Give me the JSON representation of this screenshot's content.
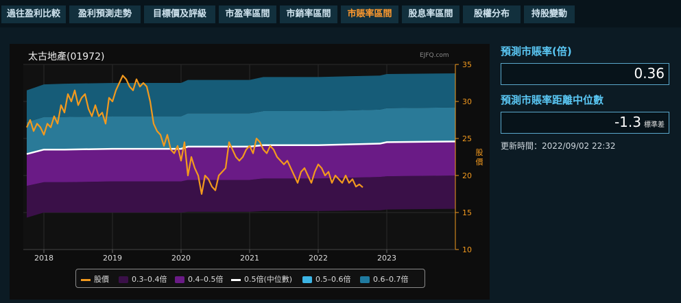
{
  "tabs": [
    {
      "label": "過往盈利比較",
      "active": false
    },
    {
      "label": "盈利預測走勢",
      "active": false
    },
    {
      "label": "目標價及評級",
      "active": false
    },
    {
      "label": "市盈率區間",
      "active": false
    },
    {
      "label": "市銷率區間",
      "active": false
    },
    {
      "label": "市賬率區間",
      "active": true
    },
    {
      "label": "股息率區間",
      "active": false
    },
    {
      "label": "股權分布",
      "active": false
    },
    {
      "label": "持股變動",
      "active": false
    }
  ],
  "side": {
    "pb_label": "預測市賬率(倍)",
    "pb_value": "0.36",
    "dist_label": "預測市賬率距離中位數",
    "dist_value": "-1.3",
    "dist_unit": "標準差",
    "updated": "更新時間：2022/09/02 22:32"
  },
  "chart_data": {
    "type": "area",
    "title": "太古地產(01972)",
    "watermark": "EJFQ.com",
    "ylabel": "股價",
    "ylim": [
      10,
      35
    ],
    "y_ticks": [
      10,
      15,
      20,
      25,
      30,
      35
    ],
    "xlim": [
      2017.7,
      2024.0
    ],
    "x_ticks": [
      "2018",
      "2019",
      "2020",
      "2021",
      "2022",
      "2023"
    ],
    "bands_x": [
      2017.75,
      2018.0,
      2018.3,
      2019.0,
      2019.5,
      2020.0,
      2020.1,
      2021.0,
      2021.2,
      2022.0,
      2022.9,
      2023.0,
      2024.0
    ],
    "bands": [
      {
        "name": "0.3–0.4倍",
        "color": "#3a1048",
        "lower": [
          14.3,
          15.0,
          15.0,
          15.0,
          15.0,
          15.0,
          15.1,
          15.1,
          15.2,
          15.2,
          15.3,
          15.4,
          15.5
        ],
        "upper": [
          18.6,
          19.1,
          19.1,
          19.2,
          19.2,
          19.2,
          19.4,
          19.4,
          19.6,
          19.6,
          19.8,
          19.9,
          20.0
        ]
      },
      {
        "name": "0.4–0.5倍",
        "color": "#6a1b86",
        "lower": [
          18.6,
          19.1,
          19.1,
          19.2,
          19.2,
          19.2,
          19.4,
          19.4,
          19.6,
          19.6,
          19.8,
          19.9,
          20.0
        ],
        "upper": [
          22.9,
          23.5,
          23.5,
          23.6,
          23.6,
          23.6,
          23.9,
          23.9,
          24.1,
          24.1,
          24.3,
          24.5,
          24.6
        ]
      },
      {
        "name": "0.5–0.6倍",
        "color": "#2a7a98",
        "lower": [
          22.9,
          23.5,
          23.5,
          23.6,
          23.6,
          23.6,
          23.9,
          23.9,
          24.1,
          24.1,
          24.3,
          24.5,
          24.6
        ],
        "upper": [
          27.2,
          27.9,
          27.9,
          28.0,
          28.0,
          28.0,
          28.4,
          28.4,
          28.7,
          28.7,
          28.9,
          29.1,
          29.2
        ]
      },
      {
        "name": "0.6–0.7倍",
        "color": "#165c78",
        "lower": [
          27.2,
          27.9,
          27.9,
          28.0,
          28.0,
          28.0,
          28.4,
          28.4,
          28.7,
          28.7,
          28.9,
          29.1,
          29.2
        ],
        "upper": [
          31.5,
          32.3,
          32.4,
          32.5,
          32.5,
          32.5,
          32.9,
          32.9,
          33.3,
          33.3,
          33.5,
          33.7,
          33.8
        ]
      }
    ],
    "median": {
      "name": "0.5倍(中位數)",
      "color": "#ffffff"
    },
    "price": {
      "name": "股價",
      "color": "#f39a1e",
      "x": [
        2017.75,
        2017.8,
        2017.85,
        2017.9,
        2017.95,
        2018.0,
        2018.05,
        2018.1,
        2018.15,
        2018.2,
        2018.25,
        2018.3,
        2018.35,
        2018.4,
        2018.45,
        2018.5,
        2018.55,
        2018.6,
        2018.65,
        2018.7,
        2018.75,
        2018.8,
        2018.85,
        2018.9,
        2018.95,
        2019.0,
        2019.05,
        2019.1,
        2019.15,
        2019.2,
        2019.25,
        2019.3,
        2019.35,
        2019.4,
        2019.45,
        2019.5,
        2019.55,
        2019.6,
        2019.65,
        2019.7,
        2019.75,
        2019.8,
        2019.85,
        2019.9,
        2019.95,
        2020.0,
        2020.05,
        2020.1,
        2020.15,
        2020.2,
        2020.25,
        2020.3,
        2020.35,
        2020.4,
        2020.45,
        2020.5,
        2020.55,
        2020.6,
        2020.65,
        2020.7,
        2020.75,
        2020.8,
        2020.85,
        2020.9,
        2020.95,
        2021.0,
        2021.05,
        2021.1,
        2021.15,
        2021.2,
        2021.25,
        2021.3,
        2021.35,
        2021.4,
        2021.45,
        2021.5,
        2021.55,
        2021.6,
        2021.65,
        2021.7,
        2021.75,
        2021.8,
        2021.85,
        2021.9,
        2021.95,
        2022.0,
        2022.05,
        2022.1,
        2022.15,
        2022.2,
        2022.25,
        2022.3,
        2022.35,
        2022.4,
        2022.45,
        2022.5,
        2022.55,
        2022.6,
        2022.65
      ],
      "y": [
        26.5,
        27.5,
        26.0,
        27.0,
        26.5,
        25.5,
        27.0,
        26.5,
        28.0,
        27.0,
        29.5,
        28.5,
        31.0,
        30.0,
        31.5,
        29.5,
        30.5,
        31.0,
        29.0,
        28.0,
        29.5,
        28.0,
        28.5,
        27.0,
        30.5,
        30.0,
        31.5,
        32.5,
        33.5,
        33.0,
        32.0,
        31.5,
        33.0,
        32.0,
        32.5,
        32.0,
        30.0,
        27.0,
        26.0,
        25.5,
        24.0,
        25.5,
        23.5,
        23.0,
        24.0,
        22.0,
        24.5,
        20.0,
        22.5,
        21.0,
        20.0,
        17.5,
        20.0,
        19.5,
        18.5,
        18.0,
        20.0,
        20.5,
        21.0,
        24.5,
        23.5,
        22.5,
        22.0,
        22.5,
        23.5,
        24.0,
        23.0,
        25.0,
        24.5,
        23.5,
        23.0,
        24.0,
        23.5,
        22.5,
        22.0,
        21.5,
        22.0,
        21.0,
        20.0,
        19.0,
        20.5,
        21.0,
        20.0,
        19.0,
        20.5,
        21.5,
        21.0,
        20.0,
        20.5,
        19.0,
        20.0,
        19.5,
        19.0,
        20.0,
        19.0,
        19.5,
        18.5,
        18.8,
        18.4
      ]
    },
    "legend_position": "bottom",
    "grid": true
  }
}
